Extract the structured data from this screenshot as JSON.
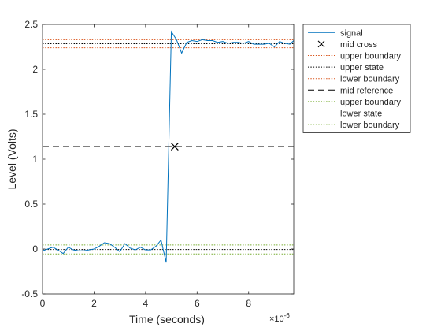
{
  "chart_data": {
    "type": "line",
    "xlabel": "Time (seconds)",
    "ylabel": "Level (Volts)",
    "x_exponent_label": "×10",
    "x_exponent": "-6",
    "xlim": [
      0,
      9.75
    ],
    "ylim": [
      -0.5,
      2.5
    ],
    "x_ticks": [
      0,
      2,
      4,
      6,
      8
    ],
    "x_tick_labels": [
      "0",
      "2",
      "4",
      "6",
      "8"
    ],
    "y_ticks": [
      -0.5,
      0,
      0.5,
      1,
      1.5,
      2,
      2.5
    ],
    "y_tick_labels": [
      "-0.5",
      "0",
      "0.5",
      "1",
      "1.5",
      "2",
      "2.5"
    ],
    "grid": false,
    "legend_position": "outside-top-right",
    "colors": {
      "signal": "#0072BD",
      "boundary_high": "#D95319",
      "boundary_low": "#77AC30",
      "state": "#000000",
      "axes": "#262626"
    },
    "signal": {
      "name": "signal",
      "x": [
        0,
        0.2,
        0.4,
        0.6,
        0.8,
        1.0,
        1.2,
        1.4,
        1.6,
        1.8,
        2.0,
        2.2,
        2.4,
        2.6,
        2.8,
        3.0,
        3.2,
        3.4,
        3.6,
        3.8,
        4.0,
        4.2,
        4.4,
        4.6,
        4.8,
        5.0,
        5.2,
        5.4,
        5.6,
        5.8,
        6.0,
        6.2,
        6.4,
        6.6,
        6.8,
        7.0,
        7.2,
        7.4,
        7.6,
        7.8,
        8.0,
        8.2,
        8.4,
        8.6,
        8.8,
        9.0,
        9.2,
        9.4,
        9.6,
        9.75
      ],
      "y": [
        -0.02,
        0.0,
        0.02,
        -0.01,
        -0.05,
        0.02,
        -0.01,
        -0.02,
        -0.02,
        -0.01,
        0.0,
        0.03,
        0.07,
        0.06,
        0.02,
        -0.03,
        0.06,
        0.01,
        -0.01,
        0.02,
        -0.01,
        -0.01,
        0.03,
        0.1,
        -0.15,
        2.42,
        2.33,
        2.18,
        2.3,
        2.32,
        2.31,
        2.33,
        2.32,
        2.32,
        2.3,
        2.31,
        2.29,
        2.3,
        2.3,
        2.29,
        2.31,
        2.28,
        2.28,
        2.28,
        2.29,
        2.25,
        2.31,
        2.29,
        2.28,
        2.32
      ]
    },
    "mid_cross": {
      "name": "mid cross",
      "x": 5.13,
      "y": 1.14
    },
    "reference_lines": [
      {
        "name": "upper boundary",
        "y": 2.33,
        "style": "dotted",
        "color": "#D95319"
      },
      {
        "name": "upper state",
        "y": 2.285,
        "style": "dotted",
        "color": "#000000"
      },
      {
        "name": "lower boundary",
        "y": 2.24,
        "style": "dotted",
        "color": "#D95319"
      },
      {
        "name": "mid reference",
        "y": 1.14,
        "style": "dashed",
        "color": "#000000"
      },
      {
        "name": "upper boundary",
        "y": 0.045,
        "style": "dotted",
        "color": "#77AC30"
      },
      {
        "name": "lower state",
        "y": -0.005,
        "style": "dotted",
        "color": "#000000"
      },
      {
        "name": "lower boundary",
        "y": -0.055,
        "style": "dotted",
        "color": "#77AC30"
      }
    ],
    "legend": [
      {
        "label": "signal",
        "kind": "line",
        "color": "#0072BD"
      },
      {
        "label": "mid cross",
        "kind": "marker-x",
        "color": "#000000"
      },
      {
        "label": "upper boundary",
        "kind": "dotted",
        "color": "#D95319"
      },
      {
        "label": "upper state",
        "kind": "dotted",
        "color": "#000000"
      },
      {
        "label": "lower boundary",
        "kind": "dotted",
        "color": "#D95319"
      },
      {
        "label": "mid reference",
        "kind": "dashed",
        "color": "#000000"
      },
      {
        "label": "upper boundary",
        "kind": "dotted",
        "color": "#77AC30"
      },
      {
        "label": "lower state",
        "kind": "dotted",
        "color": "#000000"
      },
      {
        "label": "lower boundary",
        "kind": "dotted",
        "color": "#77AC30"
      }
    ]
  }
}
